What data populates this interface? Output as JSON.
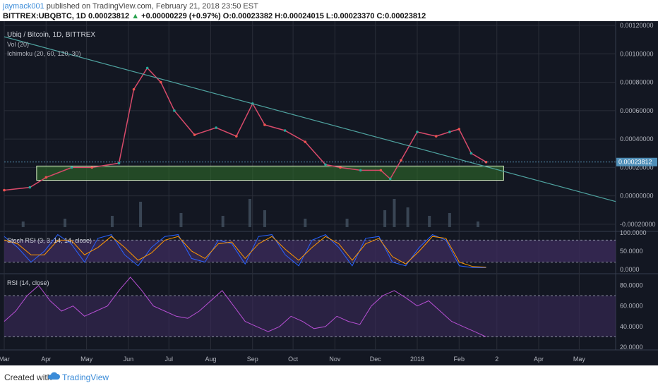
{
  "header": {
    "author": "jaymack001",
    "published": "published on TradingView.com, February 21, 2018 23:50 EST",
    "symbol_line_prefix": "BITTREX:UBQBTC, 1D",
    "last": "0.00023812",
    "change": "+0.00000229 (+0.97%)",
    "ohlc": "O:0.00023382 H:0.00024015 L:0.00023370 C:0.00023812"
  },
  "footer": {
    "created_with": "Created with",
    "brand": "TradingView"
  },
  "colors": {
    "background": "#131722",
    "grid": "#2a2e39",
    "up": "#26a69a",
    "down": "#ef5350",
    "trendline": "#4fa3a0",
    "zone": "#2f6b2a",
    "stoch_k": "#2962ff",
    "stoch_d": "#ff9800",
    "rsi_line": "#b64fd3",
    "rsi_band": "#3b2a5a"
  },
  "chart_data": [
    {
      "pane": "price",
      "type": "candlestick",
      "title": "Ubiq / Bitcoin, 1D, BITTREX",
      "indicators": [
        "Vol (20)",
        "Ichimoku (20, 60, 120, 30)"
      ],
      "x_tick_labels": [
        "Mar",
        "Apr",
        "May",
        "Jun",
        "Jul",
        "Aug",
        "Sep",
        "Oct",
        "Nov",
        "Dec",
        "2018",
        "Feb",
        "2",
        "Apr",
        "May"
      ],
      "y_tick_labels": [
        "0.00120000",
        "0.00100000",
        "0.00080000",
        "0.00060000",
        "0.00040000",
        "0.00020000",
        "0.00000000",
        "-0.00020000"
      ],
      "last_price_label": "0.00023812",
      "ylim": [
        -0.00025,
        0.0012
      ],
      "close_path": {
        "x": [
          "2017-03-01",
          "2017-03-20",
          "2017-04-01",
          "2017-04-20",
          "2017-05-05",
          "2017-05-25",
          "2017-06-05",
          "2017-06-15",
          "2017-06-25",
          "2017-07-05",
          "2017-07-20",
          "2017-08-05",
          "2017-08-20",
          "2017-09-01",
          "2017-09-10",
          "2017-09-25",
          "2017-10-10",
          "2017-10-25",
          "2017-11-05",
          "2017-11-20",
          "2017-12-05",
          "2017-12-12",
          "2017-12-20",
          "2018-01-01",
          "2018-01-15",
          "2018-01-25",
          "2018-02-01",
          "2018-02-10",
          "2018-02-21"
        ],
        "y": [
          4e-05,
          6e-05,
          0.00013,
          0.0002,
          0.0002,
          0.00023,
          0.00075,
          0.0009,
          0.0008,
          0.0006,
          0.00043,
          0.00048,
          0.00042,
          0.00065,
          0.0005,
          0.00046,
          0.00038,
          0.00022,
          0.0002,
          0.00018,
          0.00018,
          0.00012,
          0.00025,
          0.00045,
          0.00042,
          0.00045,
          0.00047,
          0.0003,
          0.00023812
        ]
      },
      "trendline": {
        "x": [
          "2017-03-01",
          "2018-02-21"
        ],
        "y": [
          0.00112,
          0.00022
        ]
      },
      "support_zone": {
        "x": [
          "2017-03-25",
          "2018-03-06"
        ],
        "y": [
          0.00011,
          0.00021
        ]
      },
      "volume": {
        "x": [
          "2017-03-15",
          "2017-04-15",
          "2017-05-20",
          "2017-06-10",
          "2017-07-10",
          "2017-08-10",
          "2017-08-30",
          "2017-09-10",
          "2017-10-10",
          "2017-11-10",
          "2017-12-08",
          "2017-12-15",
          "2017-12-25",
          "2018-01-10",
          "2018-01-25",
          "2018-02-15"
        ],
        "y": [
          0.2,
          0.3,
          0.4,
          0.9,
          0.5,
          0.4,
          1.0,
          0.6,
          0.3,
          0.3,
          0.6,
          1.0,
          0.7,
          0.4,
          0.5,
          0.2
        ]
      }
    },
    {
      "pane": "stoch",
      "type": "line",
      "title": "Stoch RSI (3, 3, 14, 14, close)",
      "y_tick_labels": [
        "100.0000",
        "50.0000",
        "0.0000"
      ],
      "ylim": [
        0,
        100
      ],
      "bands": [
        80,
        20
      ],
      "series": [
        {
          "values": [
            90,
            60,
            20,
            50,
            95,
            70,
            20,
            85,
            95,
            40,
            10,
            60,
            90,
            95,
            30,
            20,
            80,
            70,
            15,
            90,
            95,
            40,
            10,
            80,
            95,
            60,
            10,
            85,
            90,
            20,
            10,
            60,
            95,
            80,
            10,
            5,
            5
          ]
        },
        {
          "values": [
            80,
            70,
            40,
            40,
            80,
            80,
            40,
            60,
            90,
            60,
            25,
            45,
            80,
            90,
            50,
            30,
            70,
            75,
            30,
            70,
            90,
            55,
            25,
            60,
            90,
            70,
            25,
            70,
            85,
            35,
            15,
            50,
            90,
            85,
            20,
            8,
            6
          ]
        }
      ]
    },
    {
      "pane": "rsi",
      "type": "line",
      "title": "RSI (14, close)",
      "y_tick_labels": [
        "80.0000",
        "60.0000",
        "40.0000",
        "20.0000"
      ],
      "ylim": [
        20,
        90
      ],
      "bands": [
        70,
        30
      ],
      "series": [
        {
          "values": [
            45,
            55,
            70,
            80,
            65,
            55,
            60,
            50,
            55,
            60,
            75,
            88,
            75,
            60,
            55,
            50,
            48,
            55,
            65,
            75,
            60,
            45,
            40,
            35,
            40,
            50,
            45,
            38,
            40,
            50,
            45,
            42,
            60,
            70,
            75,
            68,
            60,
            65,
            55,
            45,
            40,
            35,
            30
          ]
        }
      ]
    }
  ]
}
